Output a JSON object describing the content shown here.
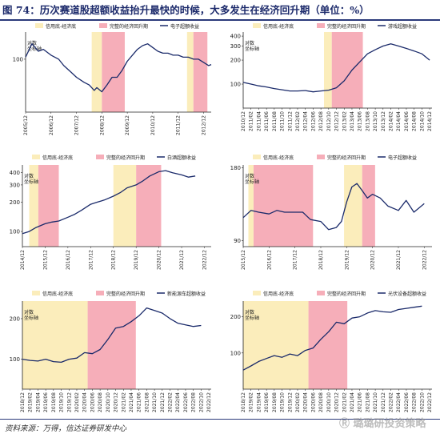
{
  "title": "图 74：历次赛道股超额收益抬升最快的时候，大多发生在经济回升期（单位：%）",
  "source": "资料来源：万得，信达证券研发中心",
  "watermark": "Ⓡ 璐璐研投资策略",
  "colors": {
    "phase1": "#fbedbb",
    "phase2": "#f6aeb9",
    "line": "#1a2a6a",
    "axis": "#222222"
  },
  "chart_data": [
    {
      "type": "line",
      "legend": [
        "信用底-经济底",
        "完整的经济回升期",
        "电子超额收益"
      ],
      "ylabel": [
        "对数",
        "坐标轴"
      ],
      "yticks": [
        100
      ],
      "xticks": [
        "2005/12",
        "2006/12",
        "2007/12",
        "2008/12",
        "2009/12",
        "2010/12",
        "2011/12",
        "2012/12"
      ],
      "phase1": [
        [
          2.6,
          3.0
        ],
        [
          6.35,
          6.6
        ]
      ],
      "phase2": [
        [
          3.0,
          3.9
        ],
        [
          6.6,
          7.15
        ]
      ],
      "series": [
        {
          "x": [
            0,
            0.25,
            0.5,
            0.7,
            1.0,
            1.3,
            1.5,
            1.8,
            2.0,
            2.3,
            2.5,
            2.7,
            2.8,
            3.0,
            3.2,
            3.4,
            3.6,
            3.8,
            4.0,
            4.2,
            4.4,
            4.6,
            4.8,
            5.0,
            5.2,
            5.4,
            5.6,
            5.8,
            6.0,
            6.2,
            6.4,
            6.6,
            6.8,
            7.0,
            7.2,
            7.3
          ],
          "y": [
            102,
            116,
            108,
            110,
            104,
            100,
            94,
            88,
            84,
            80,
            78,
            74,
            76,
            73,
            78,
            84,
            84,
            90,
            98,
            104,
            110,
            114,
            116,
            112,
            108,
            106,
            106,
            104,
            104,
            102,
            102,
            100,
            100,
            97,
            94,
            95
          ]
        }
      ]
    },
    {
      "type": "line",
      "legend": [
        "信用底-经济底",
        "完整的经济回升期",
        "游戏超额收益"
      ],
      "ylabel": [
        "对数",
        "坐标轴"
      ],
      "yticks": [
        100,
        200,
        300,
        400
      ],
      "xticks": [
        "2010/12",
        "2011/02",
        "2011/04",
        "2011/06",
        "2011/08",
        "2011/10",
        "2011/12",
        "2012/02",
        "2012/04",
        "2012/06",
        "2012/08",
        "2012/10",
        "2012/12",
        "2013/02",
        "2013/04",
        "2013/06",
        "2013/08",
        "2013/10",
        "2013/12",
        "2014/02",
        "2014/04",
        "2014/06",
        "2014/08",
        "2014/10",
        "2014/12"
      ],
      "phase1": [
        [
          10.4,
          11.4
        ]
      ],
      "phase2": [
        [
          11.4,
          15.4
        ]
      ],
      "series": [
        {
          "x": [
            0,
            1,
            2,
            3,
            4,
            5,
            6,
            7,
            8,
            9,
            10,
            11,
            12,
            13,
            14,
            15,
            16,
            17,
            18,
            19,
            20,
            21,
            22,
            23,
            24
          ],
          "y": [
            105,
            100,
            95,
            92,
            88,
            85,
            82,
            82,
            83,
            80,
            82,
            84,
            90,
            110,
            150,
            190,
            240,
            270,
            300,
            320,
            300,
            280,
            260,
            240,
            200
          ]
        }
      ]
    },
    {
      "type": "line",
      "legend": [
        "信用底-经济底",
        "完整的经济回升期",
        "白酒超额收益"
      ],
      "ylabel": [
        "对数",
        "坐标轴"
      ],
      "yticks": [
        100,
        200,
        300,
        400
      ],
      "xticks": [
        "2014/12",
        "2015/12",
        "2016/12",
        "2017/12",
        "2018/12",
        "2019/12",
        "2020/12",
        "2021/12",
        "2022/12"
      ],
      "phase1": [
        [
          0.3,
          0.7
        ],
        [
          4.0,
          5.0
        ]
      ],
      "phase2": [
        [
          0.7,
          1.6
        ],
        [
          5.0,
          6.1
        ]
      ],
      "series": [
        {
          "x": [
            0,
            0.3,
            0.6,
            1.0,
            1.3,
            1.6,
            2.0,
            2.3,
            2.6,
            3.0,
            3.3,
            3.6,
            4.0,
            4.3,
            4.6,
            5.0,
            5.3,
            5.6,
            6.0,
            6.3,
            6.6,
            7.0,
            7.3,
            7.6
          ],
          "y": [
            95,
            100,
            110,
            120,
            125,
            128,
            140,
            150,
            165,
            190,
            200,
            210,
            230,
            250,
            280,
            300,
            330,
            370,
            410,
            420,
            400,
            380,
            360,
            370
          ]
        }
      ]
    },
    {
      "type": "line",
      "legend": [
        "信用底-经济底",
        "完整的经济回升期",
        "电子超额收益"
      ],
      "ylabel": [
        "对数",
        "坐标轴"
      ],
      "yticks": [
        90,
        180
      ],
      "xticks": [
        "2015/12",
        "2016/12",
        "2017/12",
        "2018/12",
        "2019/12",
        "2020/12",
        "2021/12",
        "2022/12"
      ],
      "phase1": [
        [
          0.2,
          0.4
        ],
        [
          3.9,
          4.6
        ]
      ],
      "phase2": [
        [
          0.4,
          2.7
        ],
        [
          4.6,
          5.1
        ]
      ],
      "series": [
        {
          "x": [
            0,
            0.3,
            0.6,
            1.0,
            1.3,
            1.6,
            2.0,
            2.3,
            2.6,
            3.0,
            3.3,
            3.6,
            3.8,
            4.0,
            4.2,
            4.4,
            4.6,
            4.8,
            5.0,
            5.3,
            5.6,
            6.0,
            6.3,
            6.6,
            7.0
          ],
          "y": [
            112,
            120,
            118,
            116,
            120,
            118,
            118,
            118,
            110,
            108,
            100,
            102,
            108,
            130,
            150,
            155,
            145,
            135,
            140,
            135,
            125,
            120,
            132,
            118,
            128
          ]
        }
      ]
    },
    {
      "type": "line",
      "legend": [
        "信用底-经济底",
        "完整的经济回升期",
        "新能源车超额收益"
      ],
      "ylabel": [
        "对数",
        "坐标轴"
      ],
      "yticks": [
        100,
        200
      ],
      "xticks": [
        "2018/12",
        "2019/02",
        "2019/04",
        "2019/06",
        "2019/08",
        "2019/10",
        "2019/12",
        "2020/02",
        "2020/04",
        "2020/06",
        "2020/08",
        "2020/10",
        "2020/12",
        "2021/02",
        "2021/04",
        "2021/06",
        "2021/08",
        "2021/10",
        "2021/12",
        "2022/02",
        "2022/04",
        "2022/06",
        "2022/08",
        "2022/10",
        "2022/12"
      ],
      "phase1": [
        [
          0,
          8.4
        ]
      ],
      "phase2": [
        [
          8.4,
          14.6
        ]
      ],
      "series": [
        {
          "x": [
            0,
            1,
            2,
            3,
            4,
            5,
            6,
            7,
            8,
            9,
            10,
            11,
            12,
            13,
            14,
            15,
            16,
            17,
            18,
            19,
            20,
            21,
            22,
            23
          ],
          "y": [
            100,
            98,
            97,
            100,
            96,
            95,
            100,
            102,
            112,
            110,
            118,
            140,
            170,
            175,
            190,
            210,
            240,
            230,
            220,
            200,
            185,
            180,
            175,
            178
          ]
        }
      ]
    },
    {
      "type": "line",
      "legend": [
        "信用底-经济底",
        "完整的经济回升期",
        "光伏设备超额收益"
      ],
      "ylabel": [
        "对数",
        "坐标轴"
      ],
      "yticks": [
        100,
        200
      ],
      "xticks": [
        "2018/12",
        "2019/02",
        "2019/04",
        "2019/06",
        "2019/08",
        "2019/10",
        "2019/12",
        "2020/02",
        "2020/04",
        "2020/06",
        "2020/08",
        "2020/10",
        "2020/12",
        "2021/02",
        "2021/04",
        "2021/06",
        "2021/08",
        "2021/10",
        "2021/12",
        "2022/02",
        "2022/04",
        "2022/06",
        "2022/08",
        "2022/10",
        "2022/12"
      ],
      "phase1": [
        [
          0,
          8.4
        ]
      ],
      "phase2": [
        [
          8.4,
          13.4
        ]
      ],
      "series": [
        {
          "x": [
            0,
            1,
            2,
            3,
            4,
            5,
            6,
            7,
            8,
            9,
            10,
            11,
            12,
            13,
            14,
            15,
            16,
            17,
            18,
            19,
            20,
            21,
            22,
            23
          ],
          "y": [
            72,
            78,
            85,
            90,
            95,
            92,
            98,
            95,
            105,
            110,
            130,
            150,
            180,
            175,
            195,
            200,
            215,
            225,
            220,
            218,
            230,
            235,
            240,
            245
          ]
        }
      ]
    }
  ]
}
